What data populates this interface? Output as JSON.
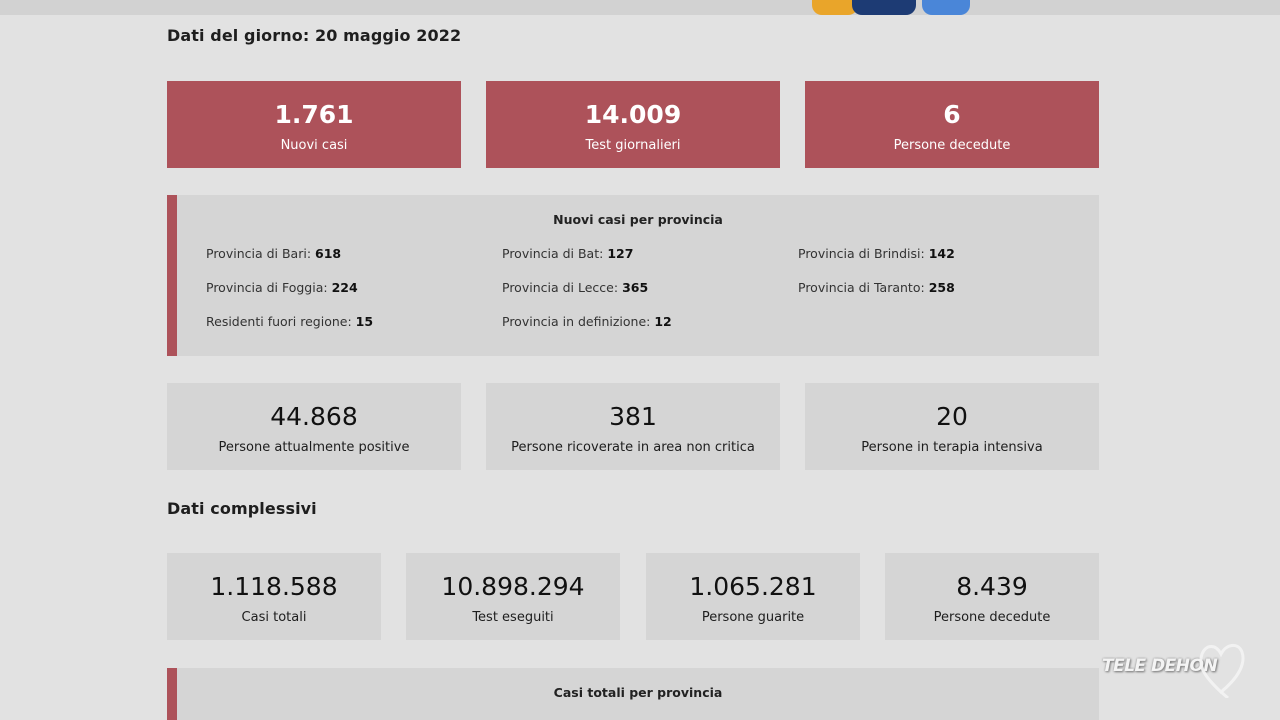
{
  "daily": {
    "heading": "Dati del giorno: 20 maggio 2022",
    "cards": [
      {
        "value": "1.761",
        "label": "Nuovi casi"
      },
      {
        "value": "14.009",
        "label": "Test giornalieri"
      },
      {
        "value": "6",
        "label": "Persone decedute"
      }
    ],
    "province_panel": {
      "title": "Nuovi casi per provincia",
      "items": [
        {
          "label": "Provincia di Bari:",
          "value": "618"
        },
        {
          "label": "Provincia di Bat:",
          "value": "127"
        },
        {
          "label": "Provincia di Brindisi:",
          "value": "142"
        },
        {
          "label": "Provincia di Foggia:",
          "value": "224"
        },
        {
          "label": "Provincia di Lecce:",
          "value": "365"
        },
        {
          "label": "Provincia di Taranto:",
          "value": "258"
        },
        {
          "label": "Residenti fuori regione:",
          "value": "15"
        },
        {
          "label": "Provincia in definizione:",
          "value": "12"
        }
      ]
    },
    "status_cards": [
      {
        "value": "44.868",
        "label": "Persone attualmente positive"
      },
      {
        "value": "381",
        "label": "Persone ricoverate in area non critica"
      },
      {
        "value": "20",
        "label": "Persone in terapia intensiva"
      }
    ]
  },
  "totals": {
    "heading": "Dati complessivi",
    "cards": [
      {
        "value": "1.118.588",
        "label": "Casi totali"
      },
      {
        "value": "10.898.294",
        "label": "Test eseguiti"
      },
      {
        "value": "1.065.281",
        "label": "Persone guarite"
      },
      {
        "value": "8.439",
        "label": "Persone decedute"
      }
    ],
    "province_panel_title": "Casi totali per provincia"
  },
  "watermark": "TELE DEHON",
  "colors": {
    "accent": "#ad525a",
    "card_gray": "#d5d5d5",
    "background": "#e2e2e2"
  }
}
